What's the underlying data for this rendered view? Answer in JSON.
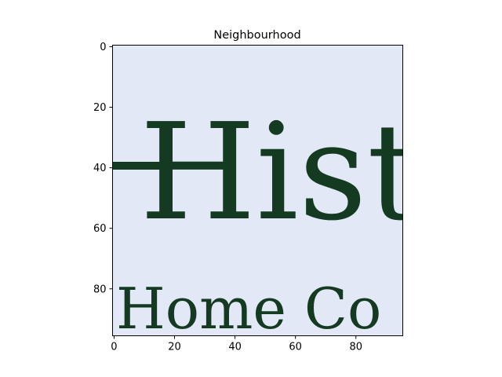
{
  "chart_data": {
    "type": "image",
    "title": "Neighbourhood",
    "image_extent": {
      "x": [
        -0.5,
        95.5
      ],
      "y": [
        95.5,
        -0.5
      ]
    },
    "x_ticks": [
      0,
      20,
      40,
      60,
      80
    ],
    "y_ticks": [
      0,
      20,
      40,
      60,
      80
    ],
    "x_tick_labels": [
      "0",
      "20",
      "40",
      "60",
      "80"
    ],
    "y_tick_labels": [
      "0",
      "20",
      "40",
      "60",
      "80"
    ],
    "y_inverted": true,
    "grid": false,
    "image_content": {
      "text": "Histo",
      "faint_text": "Home Co"
    },
    "colors": {
      "background": "#e2e8f6",
      "ink": "#143a22",
      "faint_ink": "#c8cfdb"
    }
  }
}
